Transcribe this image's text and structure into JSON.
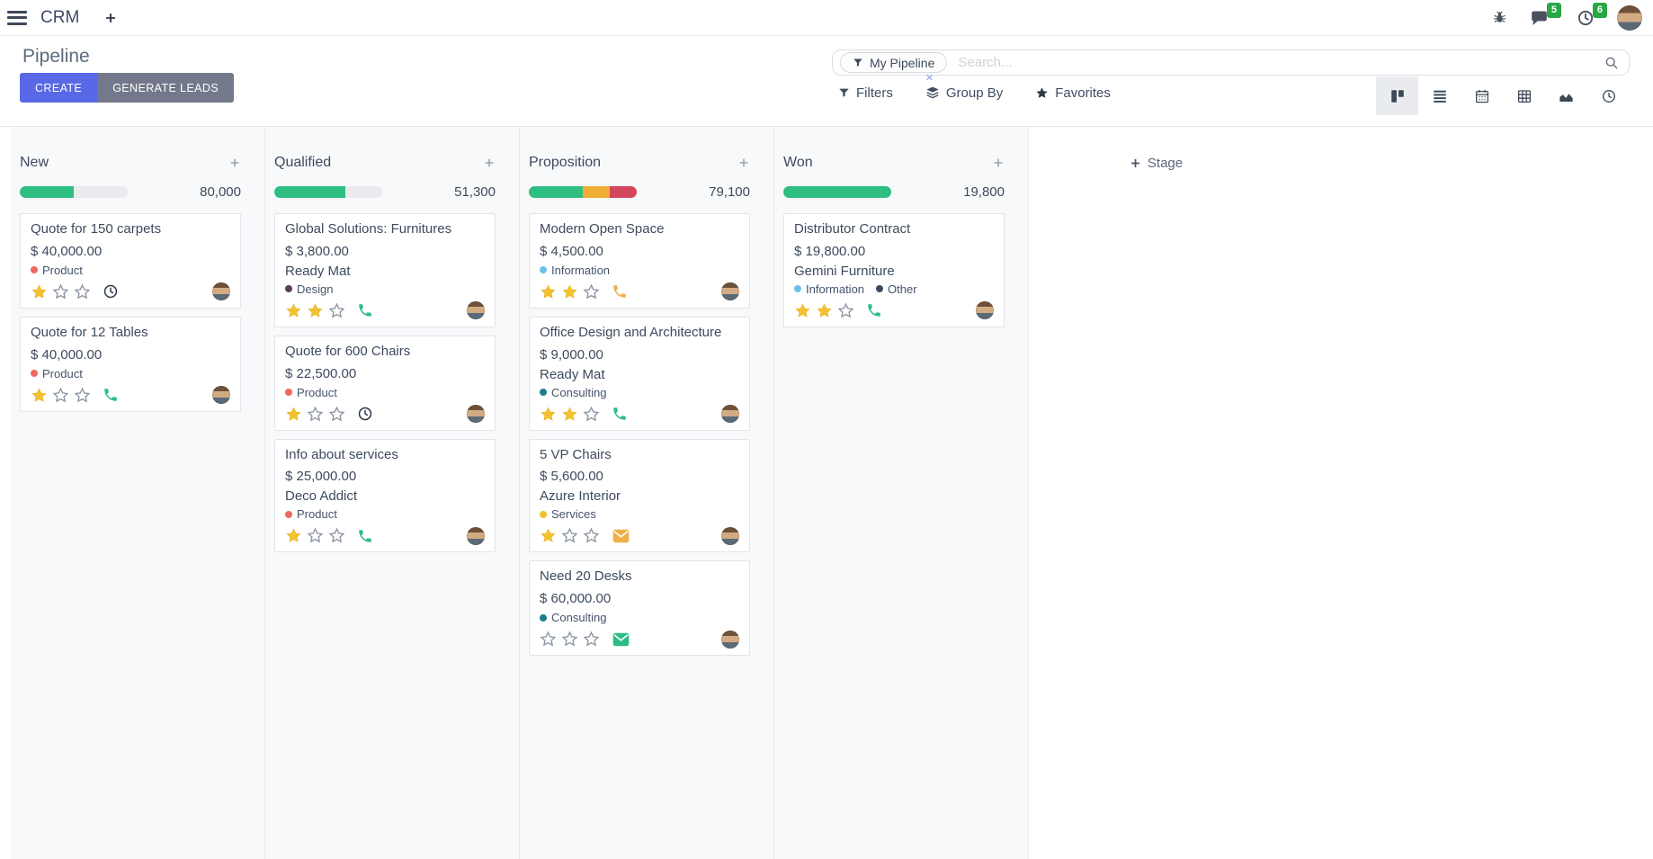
{
  "navbar": {
    "app_name": "CRM",
    "messages_badge": "5",
    "activities_badge": "6"
  },
  "control_panel": {
    "title": "Pipeline",
    "buttons": {
      "create": "CREATE",
      "generate_leads": "GENERATE LEADS"
    },
    "search": {
      "facet_label": "My Pipeline",
      "placeholder": "Search...",
      "facet_remove": "×"
    },
    "menus": {
      "filters": "Filters",
      "group_by": "Group By",
      "favorites": "Favorites"
    }
  },
  "icons": {
    "navbar": [
      "menu-icon",
      "plus-icon",
      "bug-icon",
      "messages-icon",
      "activities-clock-icon",
      "avatar"
    ],
    "search": [
      "filter-funnel-icon",
      "search-icon"
    ],
    "view_switcher": [
      "kanban-view-icon",
      "list-view-icon",
      "calendar-view-icon",
      "pivot-view-icon",
      "graph-view-icon",
      "activity-view-icon"
    ],
    "cards": [
      "priority-star-icon",
      "phone-icon",
      "clock-icon",
      "mail-icon",
      "avatar"
    ]
  },
  "board": {
    "add_stage_label": "Stage",
    "progress_colors": {
      "green": "#2ebe81",
      "orange": "#f0af34",
      "red": "#d4465c",
      "track": "#e9ebee"
    },
    "columns": [
      {
        "title": "New",
        "total": "80,000",
        "progress": [
          {
            "color": "green",
            "pct": 50
          }
        ],
        "cards": [
          {
            "title": "Quote for 150 carpets",
            "amount": "$ 40,000.00",
            "tags": [
              {
                "name": "Product",
                "color": "#ef6760"
              }
            ],
            "stars": 1,
            "activity": {
              "icon": "clock-icon",
              "color": "#2c3847"
            }
          },
          {
            "title": "Quote for 12 Tables",
            "amount": "$ 40,000.00",
            "tags": [
              {
                "name": "Product",
                "color": "#ef6760"
              }
            ],
            "stars": 1,
            "activity": {
              "icon": "phone-icon",
              "color": "#2dbd84"
            }
          }
        ]
      },
      {
        "title": "Qualified",
        "total": "51,300",
        "progress": [
          {
            "color": "green",
            "pct": 66
          }
        ],
        "cards": [
          {
            "title": "Global Solutions: Furnitures",
            "amount": "$ 3,800.00",
            "company": "Ready Mat",
            "tags": [
              {
                "name": "Design",
                "color": "#5d3d5c"
              }
            ],
            "stars": 2,
            "activity": {
              "icon": "phone-icon",
              "color": "#2dbd84"
            }
          },
          {
            "title": "Quote for 600 Chairs",
            "amount": "$ 22,500.00",
            "tags": [
              {
                "name": "Product",
                "color": "#ef6760"
              }
            ],
            "stars": 1,
            "activity": {
              "icon": "clock-icon",
              "color": "#2c3847"
            }
          },
          {
            "title": "Info about services",
            "amount": "$ 25,000.00",
            "company": "Deco Addict",
            "tags": [
              {
                "name": "Product",
                "color": "#ef6760"
              }
            ],
            "stars": 1,
            "activity": {
              "icon": "phone-icon",
              "color": "#2dbd84"
            }
          }
        ]
      },
      {
        "title": "Proposition",
        "total": "79,100",
        "progress": [
          {
            "color": "green",
            "pct": 50
          },
          {
            "color": "orange",
            "pct": 25
          },
          {
            "color": "red",
            "pct": 25
          }
        ],
        "cards": [
          {
            "title": "Modern Open Space",
            "amount": "$ 4,500.00",
            "tags": [
              {
                "name": "Information",
                "color": "#6cc1e8"
              }
            ],
            "stars": 2,
            "activity": {
              "icon": "phone-icon",
              "color": "#eeb049"
            }
          },
          {
            "title": "Office Design and Architecture",
            "amount": "$ 9,000.00",
            "company": "Ready Mat",
            "tags": [
              {
                "name": "Consulting",
                "color": "#17808f"
              }
            ],
            "stars": 2,
            "activity": {
              "icon": "phone-icon",
              "color": "#2dbd84"
            }
          },
          {
            "title": "5 VP Chairs",
            "amount": "$ 5,600.00",
            "company": "Azure Interior",
            "tags": [
              {
                "name": "Services",
                "color": "#efc22f"
              }
            ],
            "stars": 1,
            "activity": {
              "icon": "mail-icon",
              "color": "#eeb049"
            }
          },
          {
            "title": "Need 20 Desks",
            "amount": "$ 60,000.00",
            "tags": [
              {
                "name": "Consulting",
                "color": "#17808f"
              }
            ],
            "stars": 0,
            "activity": {
              "icon": "mail-icon",
              "color": "#2dbd84"
            }
          }
        ]
      },
      {
        "title": "Won",
        "total": "19,800",
        "progress": [
          {
            "color": "green",
            "pct": 100
          }
        ],
        "cards": [
          {
            "title": "Distributor Contract",
            "amount": "$ 19,800.00",
            "company": "Gemini Furniture",
            "tags": [
              {
                "name": "Information",
                "color": "#6cc1e8"
              },
              {
                "name": "Other",
                "color": "#3b4a63"
              }
            ],
            "stars": 2,
            "activity": {
              "icon": "phone-icon",
              "color": "#2dbd84"
            }
          }
        ]
      }
    ]
  }
}
